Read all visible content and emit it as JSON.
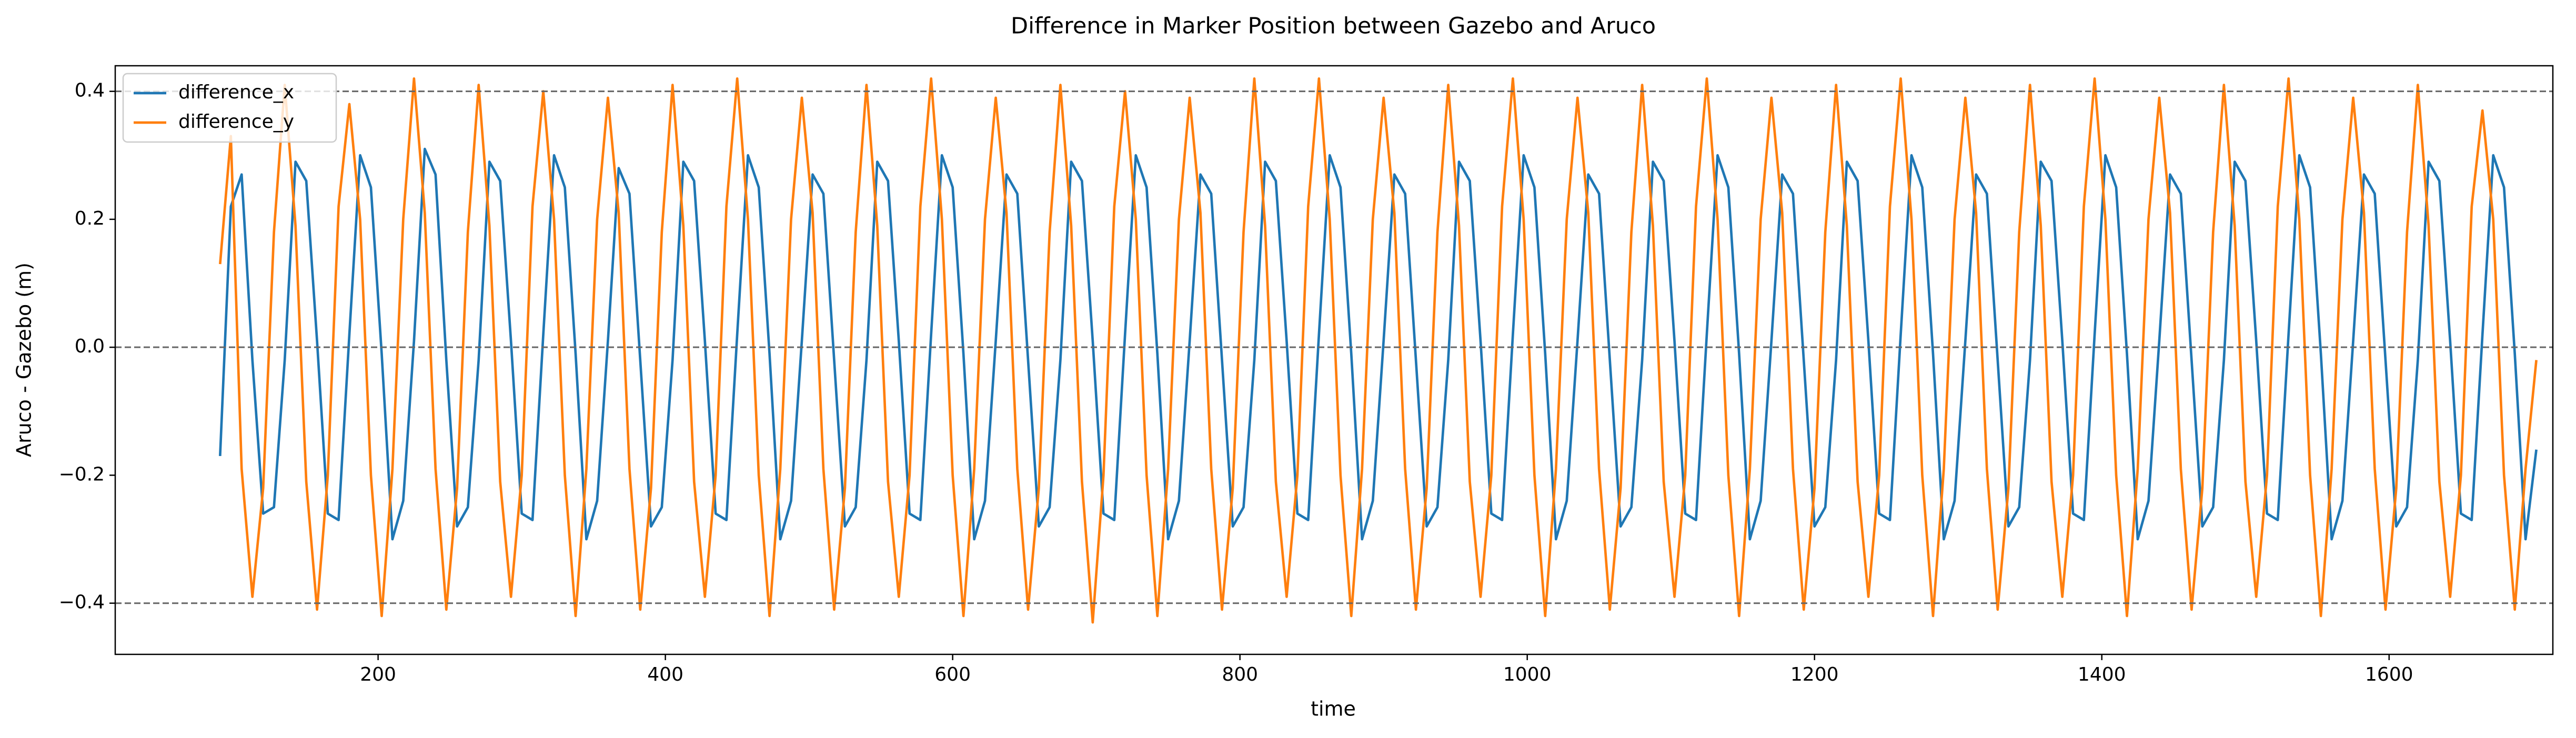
{
  "chart_data": {
    "type": "line",
    "title": "Difference in Marker Position between Gazebo and Aruco",
    "xlabel": "time",
    "ylabel": "Aruco - Gazebo (m)",
    "xlim": [
      17,
      1714
    ],
    "ylim": [
      -0.48,
      0.44
    ],
    "xticks": [
      200,
      400,
      600,
      800,
      1000,
      1200,
      1400,
      1600
    ],
    "yticks": [
      {
        "value": -0.4,
        "label": "−0.4"
      },
      {
        "value": -0.2,
        "label": "−0.2"
      },
      {
        "value": 0,
        "label": "0.0"
      },
      0.2,
      0.4
    ],
    "hlines": [
      0.4,
      0,
      -0.4
    ],
    "legend": "upper-left",
    "x": [
      90,
      97.5,
      105,
      112.5,
      120,
      127.5,
      135,
      142.5,
      150,
      157.5,
      165,
      172.5,
      180,
      187.5,
      195,
      202.5,
      210,
      217.5,
      225,
      232.5,
      240,
      247.5,
      255,
      262.5,
      270,
      277.5,
      285,
      292.5,
      300,
      307.5,
      315,
      322.5,
      330,
      337.5,
      345,
      352.5,
      360,
      367.5,
      375,
      382.5,
      390,
      397.5,
      405,
      412.5,
      420,
      427.5,
      435,
      442.5,
      450,
      457.5,
      465,
      472.5,
      480,
      487.5,
      495,
      502.5,
      510,
      517.5,
      525,
      532.5,
      540,
      547.5,
      555,
      562.5,
      570,
      577.5,
      585,
      592.5,
      600,
      607.5,
      615,
      622.5,
      630,
      637.5,
      645,
      652.5,
      660,
      667.5,
      675,
      682.5,
      690,
      697.5,
      705,
      712.5,
      720,
      727.5,
      735,
      742.5,
      750,
      757.5,
      765,
      772.5,
      780,
      787.5,
      795,
      802.5,
      810,
      817.5,
      825,
      832.5,
      840,
      847.5,
      855,
      862.5,
      870,
      877.5,
      885,
      892.5,
      900,
      907.5,
      915,
      922.5,
      930,
      937.5,
      945,
      952.5,
      960,
      967.5,
      975,
      982.5,
      990,
      997.5,
      1005,
      1012.5,
      1020,
      1027.5,
      1035,
      1042.5,
      1050,
      1057.5,
      1065,
      1072.5,
      1080,
      1087.5,
      1095,
      1102.5,
      1110,
      1117.5,
      1125,
      1132.5,
      1140,
      1147.5,
      1155,
      1162.5,
      1170,
      1177.5,
      1185,
      1192.5,
      1200,
      1207.5,
      1215,
      1222.5,
      1230,
      1237.5,
      1245,
      1252.5,
      1260,
      1267.5,
      1275,
      1282.5,
      1290,
      1297.5,
      1305,
      1312.5,
      1320,
      1327.5,
      1335,
      1342.5,
      1350,
      1357.5,
      1365,
      1372.5,
      1380,
      1387.5,
      1395,
      1402.5,
      1410,
      1417.5,
      1425,
      1432.5,
      1440,
      1447.5,
      1455,
      1462.5,
      1470,
      1477.5,
      1485,
      1492.5,
      1500,
      1507.5,
      1515,
      1522.5,
      1530,
      1537.5,
      1545,
      1552.5,
      1560,
      1567.5,
      1575,
      1582.5,
      1590,
      1597.5,
      1605,
      1612.5,
      1620,
      1627.5,
      1635,
      1642.5,
      1650,
      1657.5,
      1665,
      1672.5,
      1680,
      1687.5,
      1695,
      1702.5
    ],
    "series": [
      {
        "name": "difference_x",
        "color": "#1f77b4",
        "values": [
          -0.17,
          0.22,
          0.27,
          -0.02,
          -0.26,
          -0.25,
          -0.02,
          0.29,
          0.26,
          0.01,
          -0.26,
          -0.27,
          0.02,
          0.3,
          0.25,
          -0.01,
          -0.3,
          -0.24,
          0.01,
          0.31,
          0.27,
          -0.02,
          -0.28,
          -0.25,
          -0.02,
          0.29,
          0.26,
          0.01,
          -0.26,
          -0.27,
          0.02,
          0.3,
          0.25,
          -0.01,
          -0.3,
          -0.24,
          0.01,
          0.28,
          0.24,
          -0.02,
          -0.28,
          -0.25,
          -0.02,
          0.29,
          0.26,
          0.01,
          -0.26,
          -0.27,
          0.02,
          0.3,
          0.25,
          -0.01,
          -0.3,
          -0.24,
          0.01,
          0.27,
          0.24,
          -0.02,
          -0.28,
          -0.25,
          -0.02,
          0.29,
          0.26,
          0.01,
          -0.26,
          -0.27,
          0.02,
          0.3,
          0.25,
          -0.01,
          -0.3,
          -0.24,
          0.01,
          0.27,
          0.24,
          -0.02,
          -0.28,
          -0.25,
          -0.02,
          0.29,
          0.26,
          0.01,
          -0.26,
          -0.27,
          0.02,
          0.3,
          0.25,
          -0.01,
          -0.3,
          -0.24,
          0.01,
          0.27,
          0.24,
          -0.02,
          -0.28,
          -0.25,
          -0.02,
          0.29,
          0.26,
          0.01,
          -0.26,
          -0.27,
          0.02,
          0.3,
          0.25,
          -0.01,
          -0.3,
          -0.24,
          0.01,
          0.27,
          0.24,
          -0.02,
          -0.28,
          -0.25,
          -0.02,
          0.29,
          0.26,
          0.01,
          -0.26,
          -0.27,
          0.02,
          0.3,
          0.25,
          -0.01,
          -0.3,
          -0.24,
          0.01,
          0.27,
          0.24,
          -0.02,
          -0.28,
          -0.25,
          -0.02,
          0.29,
          0.26,
          0.01,
          -0.26,
          -0.27,
          0.02,
          0.3,
          0.25,
          -0.01,
          -0.3,
          -0.24,
          0.01,
          0.27,
          0.24,
          -0.02,
          -0.28,
          -0.25,
          -0.02,
          0.29,
          0.26,
          0.01,
          -0.26,
          -0.27,
          0.02,
          0.3,
          0.25,
          -0.01,
          -0.3,
          -0.24,
          0.01,
          0.27,
          0.24,
          -0.02,
          -0.28,
          -0.25,
          -0.02,
          0.29,
          0.26,
          0.01,
          -0.26,
          -0.27,
          0.02,
          0.3,
          0.25,
          -0.01,
          -0.3,
          -0.24,
          0.01,
          0.27,
          0.24,
          -0.02,
          -0.28,
          -0.25,
          -0.02,
          0.29,
          0.26,
          0.01,
          -0.26,
          -0.27,
          0.02,
          0.3,
          0.25,
          -0.01,
          -0.3,
          -0.24,
          0.01,
          0.27,
          0.24,
          -0.02,
          -0.28,
          -0.25,
          -0.02,
          0.29,
          0.26,
          0.01,
          -0.26,
          -0.27,
          0.02,
          0.3,
          0.25,
          -0.01,
          -0.3,
          -0.16
        ]
      },
      {
        "name": "difference_y",
        "color": "#ff7f0e",
        "values": [
          0.13,
          0.33,
          -0.19,
          -0.39,
          -0.22,
          0.18,
          0.41,
          0.19,
          -0.21,
          -0.41,
          -0.2,
          0.22,
          0.38,
          0.2,
          -0.2,
          -0.42,
          -0.19,
          0.2,
          0.42,
          0.21,
          -0.19,
          -0.41,
          -0.22,
          0.18,
          0.41,
          0.19,
          -0.21,
          -0.39,
          -0.2,
          0.22,
          0.4,
          0.2,
          -0.2,
          -0.42,
          -0.19,
          0.2,
          0.39,
          0.21,
          -0.19,
          -0.41,
          -0.22,
          0.18,
          0.41,
          0.19,
          -0.21,
          -0.39,
          -0.2,
          0.22,
          0.42,
          0.2,
          -0.2,
          -0.42,
          -0.19,
          0.2,
          0.39,
          0.21,
          -0.19,
          -0.41,
          -0.22,
          0.18,
          0.41,
          0.19,
          -0.21,
          -0.39,
          -0.2,
          0.22,
          0.42,
          0.2,
          -0.2,
          -0.42,
          -0.19,
          0.2,
          0.39,
          0.21,
          -0.19,
          -0.41,
          -0.22,
          0.18,
          0.41,
          0.19,
          -0.21,
          -0.43,
          -0.2,
          0.22,
          0.4,
          0.2,
          -0.2,
          -0.42,
          -0.19,
          0.2,
          0.39,
          0.21,
          -0.19,
          -0.41,
          -0.22,
          0.18,
          0.42,
          0.19,
          -0.21,
          -0.39,
          -0.2,
          0.22,
          0.42,
          0.2,
          -0.2,
          -0.42,
          -0.19,
          0.2,
          0.39,
          0.21,
          -0.19,
          -0.41,
          -0.22,
          0.18,
          0.41,
          0.19,
          -0.21,
          -0.39,
          -0.2,
          0.22,
          0.42,
          0.2,
          -0.2,
          -0.42,
          -0.19,
          0.2,
          0.39,
          0.21,
          -0.19,
          -0.41,
          -0.22,
          0.18,
          0.41,
          0.19,
          -0.21,
          -0.39,
          -0.2,
          0.22,
          0.42,
          0.2,
          -0.2,
          -0.42,
          -0.19,
          0.2,
          0.39,
          0.21,
          -0.19,
          -0.41,
          -0.22,
          0.18,
          0.41,
          0.19,
          -0.21,
          -0.39,
          -0.2,
          0.22,
          0.42,
          0.2,
          -0.2,
          -0.42,
          -0.19,
          0.2,
          0.39,
          0.21,
          -0.19,
          -0.41,
          -0.22,
          0.18,
          0.41,
          0.19,
          -0.21,
          -0.39,
          -0.2,
          0.22,
          0.42,
          0.2,
          -0.2,
          -0.42,
          -0.19,
          0.2,
          0.39,
          0.21,
          -0.19,
          -0.41,
          -0.22,
          0.18,
          0.41,
          0.19,
          -0.21,
          -0.39,
          -0.2,
          0.22,
          0.42,
          0.2,
          -0.2,
          -0.42,
          -0.19,
          0.2,
          0.39,
          0.21,
          -0.19,
          -0.41,
          -0.22,
          0.18,
          0.41,
          0.19,
          -0.21,
          -0.39,
          -0.2,
          0.22,
          0.37,
          0.2,
          -0.2,
          -0.41,
          -0.19,
          -0.02
        ]
      }
    ]
  }
}
